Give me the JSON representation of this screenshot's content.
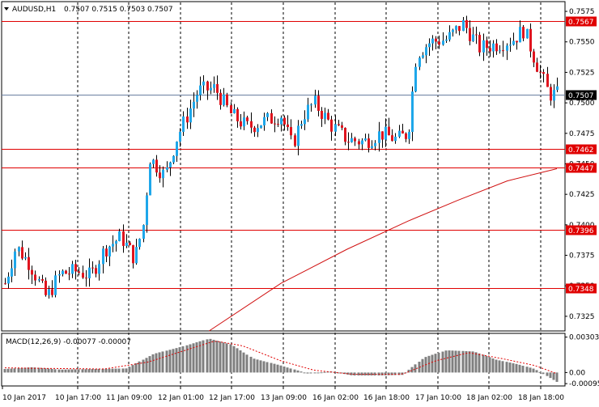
{
  "header": {
    "symbol_label": "AUDUSD,H1",
    "ohlc": "0.7507 0.7515 0.7503 0.7507",
    "menu_icon": "triangle-down-icon"
  },
  "colors": {
    "bull": "#1ea7ea",
    "bear": "#e0141e",
    "level_line": "#e00000",
    "ma_line": "#d01010",
    "current_price_line": "#6a7fa0",
    "grid": "#000000",
    "macd_hist": "#7f7f7f",
    "macd_signal": "#e00000"
  },
  "chart_data": [
    {
      "type": "candlestick",
      "title": "AUDUSD,H1",
      "ylim": [
        0.7313,
        0.7583
      ],
      "y_ticks": [
        "0.7575",
        "0.7550",
        "0.7525",
        "0.7500",
        "0.7475",
        "0.7450",
        "0.7425",
        "0.7400",
        "0.7375",
        "0.7350",
        "0.7325"
      ],
      "x_labels": [
        "10 Jan 2017",
        "10 Jan 17:00",
        "11 Jan 09:00",
        "12 Jan 01:00",
        "12 Jan 17:00",
        "13 Jan 09:00",
        "16 Jan 02:00",
        "16 Jan 18:00",
        "17 Jan 10:00",
        "18 Jan 02:00",
        "18 Jan 18:00"
      ],
      "horizontal_levels": [
        "0.7567",
        "0.7462",
        "0.7447",
        "0.7396",
        "0.7348"
      ],
      "current_price": "0.7507",
      "moving_average": [
        {
          "t": 0.37,
          "v": 0.7313
        },
        {
          "t": 0.5,
          "v": 0.7352
        },
        {
          "t": 0.62,
          "v": 0.738
        },
        {
          "t": 0.73,
          "v": 0.7403
        },
        {
          "t": 0.82,
          "v": 0.742
        },
        {
          "t": 0.91,
          "v": 0.7436
        },
        {
          "t": 1.0,
          "v": 0.7446
        }
      ],
      "price_path": [
        {
          "t": 0.0,
          "v": 0.7352
        },
        {
          "t": 0.02,
          "v": 0.7382
        },
        {
          "t": 0.045,
          "v": 0.7368
        },
        {
          "t": 0.075,
          "v": 0.734
        },
        {
          "t": 0.1,
          "v": 0.736
        },
        {
          "t": 0.13,
          "v": 0.7362
        },
        {
          "t": 0.155,
          "v": 0.7358
        },
        {
          "t": 0.18,
          "v": 0.738
        },
        {
          "t": 0.21,
          "v": 0.739
        },
        {
          "t": 0.235,
          "v": 0.7372
        },
        {
          "t": 0.25,
          "v": 0.74
        },
        {
          "t": 0.262,
          "v": 0.7455
        },
        {
          "t": 0.29,
          "v": 0.744
        },
        {
          "t": 0.31,
          "v": 0.747
        },
        {
          "t": 0.33,
          "v": 0.749
        },
        {
          "t": 0.35,
          "v": 0.751
        },
        {
          "t": 0.38,
          "v": 0.7512
        },
        {
          "t": 0.41,
          "v": 0.749
        },
        {
          "t": 0.44,
          "v": 0.748
        },
        {
          "t": 0.47,
          "v": 0.7485
        },
        {
          "t": 0.5,
          "v": 0.749
        },
        {
          "t": 0.52,
          "v": 0.7465
        },
        {
          "t": 0.54,
          "v": 0.749
        },
        {
          "t": 0.56,
          "v": 0.75
        },
        {
          "t": 0.59,
          "v": 0.7482
        },
        {
          "t": 0.62,
          "v": 0.747
        },
        {
          "t": 0.65,
          "v": 0.7468
        },
        {
          "t": 0.68,
          "v": 0.7475
        },
        {
          "t": 0.71,
          "v": 0.747
        },
        {
          "t": 0.73,
          "v": 0.7475
        },
        {
          "t": 0.745,
          "v": 0.754
        },
        {
          "t": 0.77,
          "v": 0.755
        },
        {
          "t": 0.8,
          "v": 0.7552
        },
        {
          "t": 0.83,
          "v": 0.7565
        },
        {
          "t": 0.86,
          "v": 0.7545
        },
        {
          "t": 0.89,
          "v": 0.7548
        },
        {
          "t": 0.92,
          "v": 0.7552
        },
        {
          "t": 0.94,
          "v": 0.756
        },
        {
          "t": 0.96,
          "v": 0.7535
        },
        {
          "t": 0.985,
          "v": 0.7507
        },
        {
          "t": 1.0,
          "v": 0.7507
        }
      ]
    },
    {
      "type": "bar",
      "title": "MACD(12,26,9) -0.00077 -0.00007",
      "ylim": [
        -0.00115,
        0.00335
      ],
      "y_ticks": [
        "0.00303",
        "0.00",
        "-0.00095"
      ],
      "hist_path": [
        {
          "t": 0.0,
          "v": 0.0003
        },
        {
          "t": 0.05,
          "v": 0.00045
        },
        {
          "t": 0.1,
          "v": 0.00025
        },
        {
          "t": 0.16,
          "v": 0.0003
        },
        {
          "t": 0.22,
          "v": 0.00035
        },
        {
          "t": 0.27,
          "v": 0.0016
        },
        {
          "t": 0.32,
          "v": 0.0022
        },
        {
          "t": 0.37,
          "v": 0.0029
        },
        {
          "t": 0.41,
          "v": 0.0024
        },
        {
          "t": 0.45,
          "v": 0.0012
        },
        {
          "t": 0.5,
          "v": 0.0006
        },
        {
          "t": 0.55,
          "v": -0.0001
        },
        {
          "t": 0.59,
          "v": 0.0001
        },
        {
          "t": 0.63,
          "v": -0.00025
        },
        {
          "t": 0.68,
          "v": -0.00025
        },
        {
          "t": 0.72,
          "v": -0.0002
        },
        {
          "t": 0.76,
          "v": 0.0013
        },
        {
          "t": 0.8,
          "v": 0.0019
        },
        {
          "t": 0.85,
          "v": 0.0018
        },
        {
          "t": 0.89,
          "v": 0.0011
        },
        {
          "t": 0.93,
          "v": 0.0007
        },
        {
          "t": 0.96,
          "v": 0.0003
        },
        {
          "t": 1.0,
          "v": -0.0008
        }
      ],
      "signal_path": [
        {
          "t": 0.0,
          "v": 0.0004
        },
        {
          "t": 0.08,
          "v": 0.00035
        },
        {
          "t": 0.18,
          "v": 0.0003
        },
        {
          "t": 0.26,
          "v": 0.0009
        },
        {
          "t": 0.32,
          "v": 0.0018
        },
        {
          "t": 0.38,
          "v": 0.0027
        },
        {
          "t": 0.43,
          "v": 0.0023
        },
        {
          "t": 0.5,
          "v": 0.001
        },
        {
          "t": 0.56,
          "v": 0.0002
        },
        {
          "t": 0.63,
          "v": -0.00015
        },
        {
          "t": 0.72,
          "v": -0.00015
        },
        {
          "t": 0.78,
          "v": 0.001
        },
        {
          "t": 0.84,
          "v": 0.0017
        },
        {
          "t": 0.9,
          "v": 0.0012
        },
        {
          "t": 0.96,
          "v": 0.0006
        },
        {
          "t": 1.0,
          "v": -0.0001
        }
      ]
    }
  ]
}
